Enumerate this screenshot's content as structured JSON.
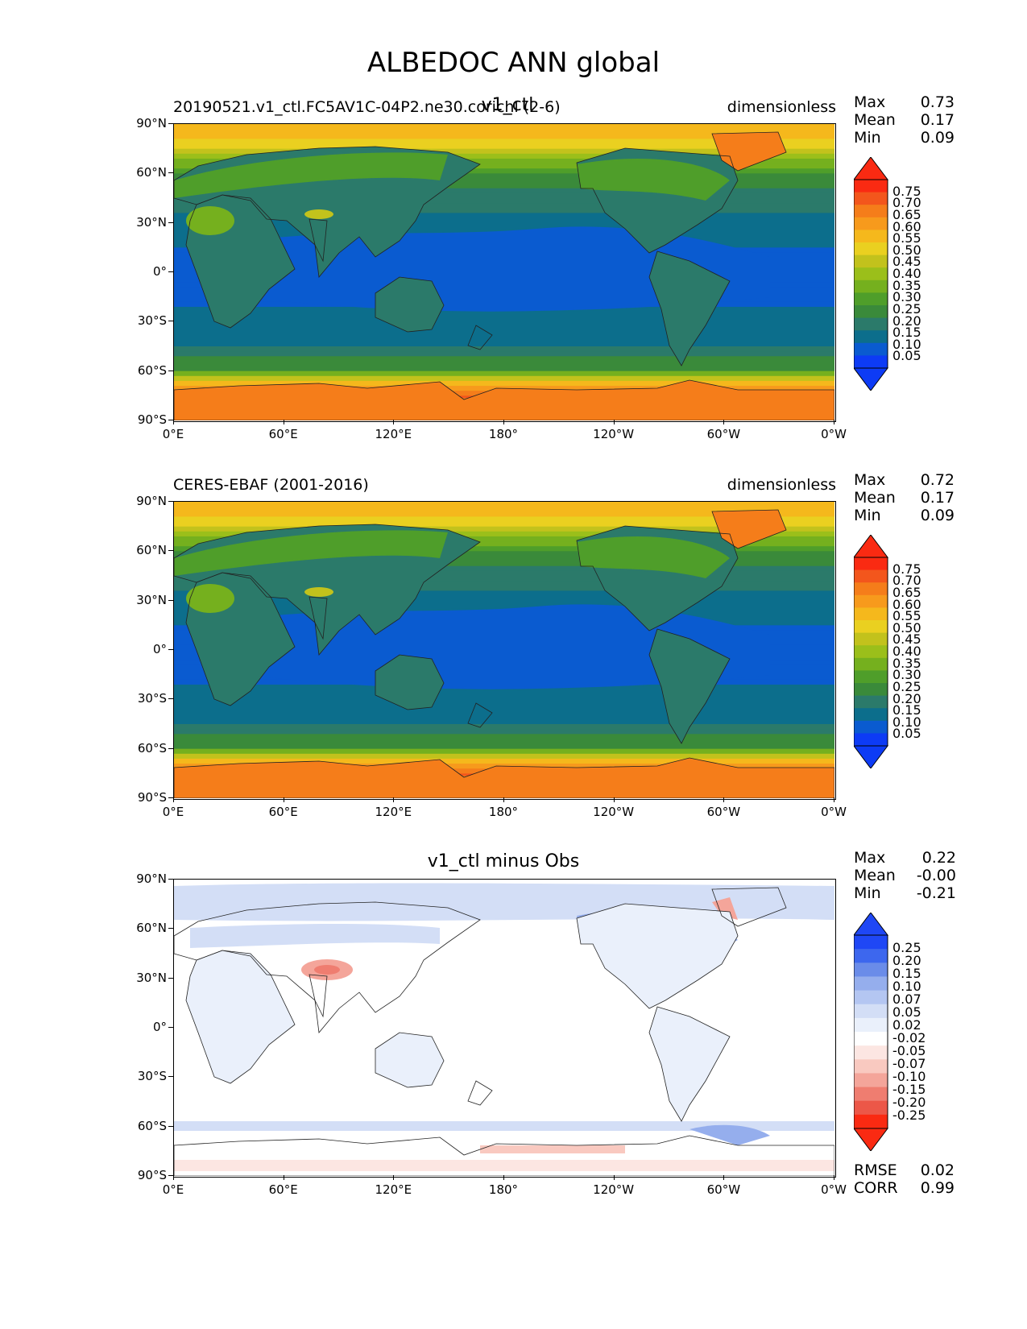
{
  "suptitle": "ALBEDOC ANN global",
  "panels": [
    {
      "left_title": "20190521.v1_ctl.FC5AV1C-04P2.ne30.corichl (2-6)",
      "center_title": "v1_ctl",
      "right_title": "dimensionless",
      "stats": [
        {
          "label": "Max",
          "value": "0.73"
        },
        {
          "label": "Mean",
          "value": "0.17"
        },
        {
          "label": "Min",
          "value": "0.09"
        }
      ],
      "colorbar_labels": [
        "0.75",
        "0.70",
        "0.65",
        "0.60",
        "0.55",
        "0.50",
        "0.45",
        "0.40",
        "0.35",
        "0.30",
        "0.25",
        "0.20",
        "0.15",
        "0.10",
        "0.05"
      ]
    },
    {
      "left_title": "CERES-EBAF (2001-2016)",
      "center_title": "",
      "right_title": "dimensionless",
      "stats": [
        {
          "label": "Max",
          "value": "0.72"
        },
        {
          "label": "Mean",
          "value": "0.17"
        },
        {
          "label": "Min",
          "value": "0.09"
        }
      ],
      "colorbar_labels": [
        "0.75",
        "0.70",
        "0.65",
        "0.60",
        "0.55",
        "0.50",
        "0.45",
        "0.40",
        "0.35",
        "0.30",
        "0.25",
        "0.20",
        "0.15",
        "0.10",
        "0.05"
      ]
    },
    {
      "left_title": "",
      "center_title": "v1_ctl minus Obs",
      "right_title": "",
      "stats": [
        {
          "label": "Max",
          "value": "0.22"
        },
        {
          "label": "Mean",
          "value": "-0.00"
        },
        {
          "label": "Min",
          "value": "-0.21"
        }
      ],
      "colorbar_labels": [
        "0.25",
        "0.20",
        "0.15",
        "0.10",
        "0.07",
        "0.05",
        "0.02",
        "-0.02",
        "-0.05",
        "-0.07",
        "-0.10",
        "-0.15",
        "-0.20",
        "-0.25"
      ],
      "extra_stats": [
        {
          "label": "RMSE",
          "value": "0.02"
        },
        {
          "label": "CORR",
          "value": "0.99"
        }
      ]
    }
  ],
  "x_ticks": [
    "0°E",
    "60°E",
    "120°E",
    "180°",
    "120°W",
    "60°W",
    "0°W"
  ],
  "y_ticks": [
    "90°N",
    "60°N",
    "30°N",
    "0°",
    "30°S",
    "60°S",
    "90°S"
  ],
  "colors": {
    "seq": [
      "#0d3bf5",
      "#0a5bd0",
      "#0c6e8c",
      "#2b7a6a",
      "#3a8a3a",
      "#4f9e2a",
      "#75b01e",
      "#9bbf1a",
      "#c2c21c",
      "#ead020",
      "#f5b81c",
      "#f79a1c",
      "#f57d1a",
      "#f3561c",
      "#fa2a12"
    ],
    "div": [
      "#1f47f5",
      "#3d67ee",
      "#6a8ce9",
      "#95aeed",
      "#b4c6f2",
      "#d3def6",
      "#eaf0fb",
      "#ffffff",
      "#fce6e2",
      "#f9c9c0",
      "#f4a59a",
      "#ef7d70",
      "#ec5748",
      "#fa2a12"
    ]
  },
  "chart_data": [
    {
      "type": "heatmap",
      "title": "v1_ctl",
      "units": "dimensionless",
      "x_range": [
        0,
        360
      ],
      "y_range": [
        -90,
        90
      ],
      "levels": [
        0.05,
        0.1,
        0.15,
        0.2,
        0.25,
        0.3,
        0.35,
        0.4,
        0.45,
        0.5,
        0.55,
        0.6,
        0.65,
        0.7,
        0.75
      ],
      "zonal_profile": {
        "lat": [
          -90,
          -75,
          -65,
          -60,
          -45,
          -30,
          -15,
          0,
          15,
          30,
          45,
          60,
          75,
          90
        ],
        "albedo": [
          0.68,
          0.66,
          0.45,
          0.25,
          0.15,
          0.12,
          0.09,
          0.09,
          0.1,
          0.13,
          0.17,
          0.25,
          0.45,
          0.55
        ]
      },
      "stats": {
        "max": 0.73,
        "mean": 0.17,
        "min": 0.09
      }
    },
    {
      "type": "heatmap",
      "title": "CERES-EBAF (2001-2016)",
      "units": "dimensionless",
      "x_range": [
        0,
        360
      ],
      "y_range": [
        -90,
        90
      ],
      "levels": [
        0.05,
        0.1,
        0.15,
        0.2,
        0.25,
        0.3,
        0.35,
        0.4,
        0.45,
        0.5,
        0.55,
        0.6,
        0.65,
        0.7,
        0.75
      ],
      "zonal_profile": {
        "lat": [
          -90,
          -75,
          -65,
          -60,
          -45,
          -30,
          -15,
          0,
          15,
          30,
          45,
          60,
          75,
          90
        ],
        "albedo": [
          0.66,
          0.64,
          0.44,
          0.25,
          0.15,
          0.12,
          0.09,
          0.09,
          0.1,
          0.13,
          0.17,
          0.26,
          0.45,
          0.52
        ]
      },
      "stats": {
        "max": 0.72,
        "mean": 0.17,
        "min": 0.09
      }
    },
    {
      "type": "heatmap",
      "title": "v1_ctl minus Obs",
      "x_range": [
        0,
        360
      ],
      "y_range": [
        -90,
        90
      ],
      "levels": [
        -0.25,
        -0.2,
        -0.15,
        -0.1,
        -0.07,
        -0.05,
        -0.02,
        0.02,
        0.05,
        0.07,
        0.1,
        0.15,
        0.2,
        0.25
      ],
      "stats": {
        "max": 0.22,
        "mean": -0.0,
        "min": -0.21,
        "rmse": 0.02,
        "corr": 0.99
      }
    }
  ]
}
